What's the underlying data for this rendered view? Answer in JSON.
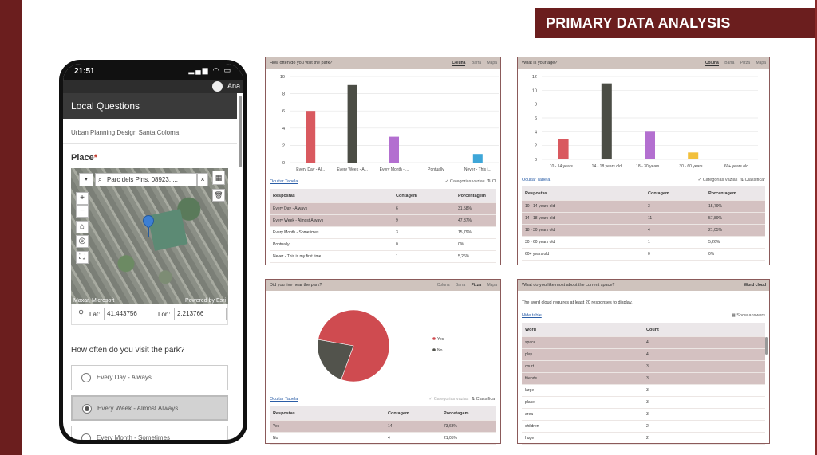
{
  "title": "PRIMARY DATA ANALYSIS",
  "phone": {
    "time": "21:51",
    "status_icons": "▂▄▆ ◠ ▭",
    "user": "Ana",
    "header": "Local Questions",
    "subtitle": "Urban Planning Design Santa Coloma",
    "place_label": "Place",
    "place_required": "*",
    "map": {
      "search_value": "Parc dels Pins, 08923, ...",
      "attribution_left": "Maxar, Microsoft",
      "attribution_right": "Powered by Esri",
      "zoom_in": "+",
      "zoom_out": "−",
      "home": "⌂",
      "locate": "◎",
      "fullscreen": "⛶",
      "dropdown": "▾",
      "search_icon": "⌕",
      "close": "×",
      "qr": "▦",
      "trash": "🗑"
    },
    "lat_label": "Lat:",
    "lat_value": "41,443756",
    "lon_label": "Lon:",
    "lon_value": "2,213766",
    "question": "How often do you visit the park?",
    "options": [
      {
        "label": "Every Day - Always",
        "selected": false
      },
      {
        "label": "Every Week - Almost Always",
        "selected": true
      },
      {
        "label": "Every Month - Sometimes",
        "selected": false
      }
    ]
  },
  "panels": {
    "visit": {
      "title": "How often do you visit the park?",
      "tabs": [
        "Coluna",
        "Barra",
        "Mapa"
      ],
      "active_tab": "Coluna",
      "hide_table": "Ocultar Tabela",
      "opt1": "✓ Categorias vazias",
      "opt2": "⇅ Cl",
      "headers": [
        "Respostas",
        "Contagem",
        "Porcentagem"
      ],
      "rows": [
        {
          "r": "Every Day - Always",
          "c": "6",
          "p": "31,58%",
          "hl": true
        },
        {
          "r": "Every Week - Almost Always",
          "c": "9",
          "p": "47,37%",
          "hl": true
        },
        {
          "r": "Every Month - Sometimes",
          "c": "3",
          "p": "15,79%",
          "hl": false
        },
        {
          "r": "Pontually",
          "c": "0",
          "p": "0%",
          "hl": false
        },
        {
          "r": "Never - This is my first time",
          "c": "1",
          "p": "5,26%",
          "hl": false
        }
      ]
    },
    "age": {
      "title": "What is your age?",
      "tabs": [
        "Coluna",
        "Barra",
        "Pizza",
        "Mapa"
      ],
      "active_tab": "Coluna",
      "hide_table": "Ocultar Tabela",
      "opt1": "✓ Categorias vazias",
      "opt2": "⇅ Classificar",
      "headers": [
        "Respostas",
        "Contagem",
        "Porcentagem"
      ],
      "rows": [
        {
          "r": "10 - 14 years old",
          "c": "3",
          "p": "15,79%",
          "hl": true
        },
        {
          "r": "14 - 18 years old",
          "c": "11",
          "p": "57,89%",
          "hl": true
        },
        {
          "r": "18 - 30 years old",
          "c": "4",
          "p": "21,05%",
          "hl": true
        },
        {
          "r": "30 - 60 years old",
          "c": "1",
          "p": "5,26%",
          "hl": false
        },
        {
          "r": "60+ years old",
          "c": "0",
          "p": "0%",
          "hl": false
        }
      ]
    },
    "live": {
      "title": "Did you live near the park?",
      "tabs": [
        "Coluna",
        "Barra",
        "Pizza",
        "Mapa"
      ],
      "active_tab": "Pizza",
      "hide_table": "Ocultar Tabela",
      "opt1": "✓ Categorias vazias",
      "opt2": "⇅ Classificar",
      "headers": [
        "Respostas",
        "Contagem",
        "Porcetagem"
      ],
      "rows": [
        {
          "r": "Yes",
          "c": "14",
          "p": "73,68%",
          "hl": true
        },
        {
          "r": "No",
          "c": "4",
          "p": "21,05%",
          "hl": false
        }
      ]
    },
    "words": {
      "title": "What do you like most about the current space?",
      "tab": "Word cloud",
      "note": "The word cloud requires at least 20 responses to display.",
      "hide_table": "Hide table",
      "opt1": "▦ Show answers",
      "headers": [
        "Word",
        "Count"
      ],
      "rows": [
        {
          "w": "space",
          "c": "4",
          "hl": true
        },
        {
          "w": "play",
          "c": "4",
          "hl": true
        },
        {
          "w": "court",
          "c": "3",
          "hl": true
        },
        {
          "w": "friends",
          "c": "3",
          "hl": true
        },
        {
          "w": "large",
          "c": "3",
          "hl": false
        },
        {
          "w": "place",
          "c": "3",
          "hl": false
        },
        {
          "w": "area",
          "c": "3",
          "hl": false
        },
        {
          "w": "children",
          "c": "2",
          "hl": false
        },
        {
          "w": "huge",
          "c": "2",
          "hl": false
        }
      ]
    }
  },
  "chart_data": [
    {
      "type": "bar",
      "title": "How often do you visit the park?",
      "categories": [
        "Every Day - Al...",
        "Every Week - A...",
        "Every Month - ...",
        "Pontually",
        "Never - This i..."
      ],
      "values": [
        6,
        9,
        3,
        0,
        1
      ],
      "colors": [
        "#d9595f",
        "#4b4d45",
        "#b36fd0",
        "#e8c33a",
        "#3ea6d8"
      ],
      "yticks": [
        "0",
        "2",
        "4",
        "6",
        "8",
        "10"
      ],
      "ylim": [
        0,
        10
      ],
      "grid": true
    },
    {
      "type": "bar",
      "title": "What is your age?",
      "categories": [
        "10 - 14 years ...",
        "14 - 18 years old",
        "18 - 30 years ...",
        "30 - 60 years ...",
        "60+ years old"
      ],
      "values": [
        3,
        11,
        4,
        1,
        0
      ],
      "colors": [
        "#d9595f",
        "#4b4d45",
        "#b36fd0",
        "#f2c03c",
        "#3ea6d8"
      ],
      "yticks": [
        "0",
        "2",
        "4",
        "6",
        "8",
        "10",
        "12"
      ],
      "ylim": [
        0,
        12
      ],
      "grid": true
    },
    {
      "type": "pie",
      "title": "Did you live near the park?",
      "categories": [
        "Yes",
        "No"
      ],
      "values": [
        14,
        4
      ],
      "colors": [
        "#cf4b50",
        "#52534c"
      ],
      "legend": "right"
    }
  ]
}
